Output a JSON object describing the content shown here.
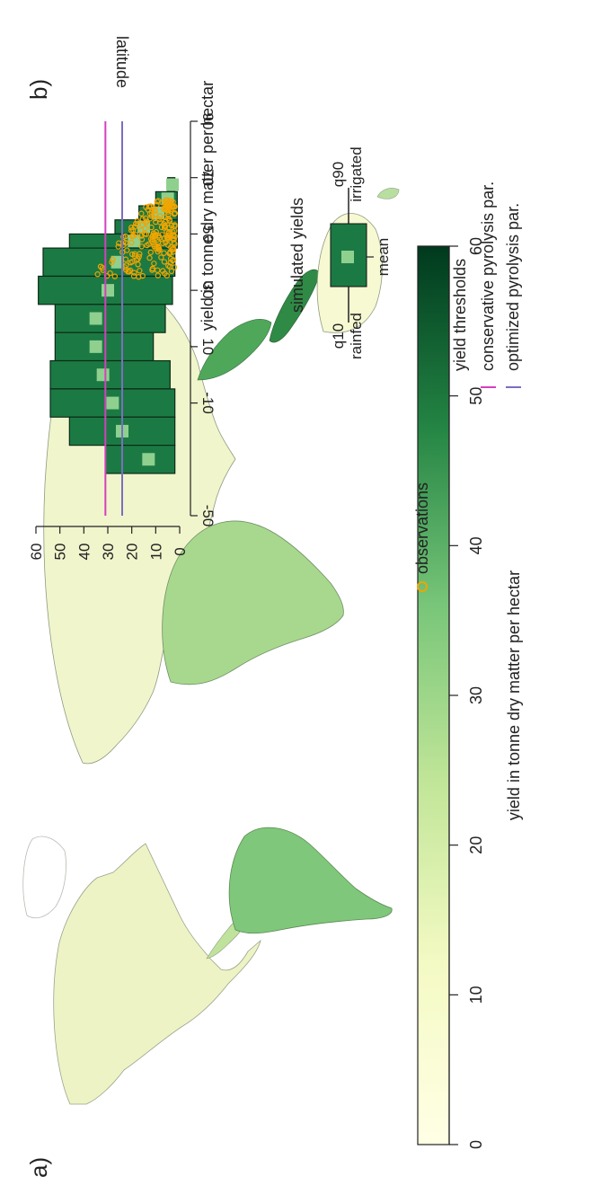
{
  "panel_a": {
    "label": "a)",
    "legend": {
      "title": "yield in tonne dry matter per hectar",
      "ticks": [
        "0",
        "10",
        "20",
        "30",
        "40",
        "50",
        "60"
      ],
      "range": [
        0,
        60
      ],
      "colors": [
        "#ffffe5",
        "#d9f0a3",
        "#78c679",
        "#238443",
        "#004529"
      ]
    }
  },
  "panel_b": {
    "label": "b)",
    "chart_data": {
      "type": "bar",
      "orientation": "horizontal-boxes-by-latitude",
      "xlabel": "yield in tonne dry matter per hectar",
      "ylabel": "latitude",
      "xlim": [
        0,
        60
      ],
      "ylim": [
        -50,
        90
      ],
      "x_ticks": [
        "0",
        "10",
        "20",
        "30",
        "40",
        "50",
        "60"
      ],
      "y_ticks": [
        "90",
        "70",
        "50",
        "30",
        "10",
        "-10",
        "-50"
      ],
      "y_tick_values": [
        90,
        70,
        50,
        30,
        10,
        -10,
        -50
      ],
      "box_color": "#1b7a43",
      "mean_color": "#8fd08f",
      "bins": [
        {
          "lat_top": 70,
          "lat_bottom": 65,
          "q10": 2,
          "q90": 5,
          "mean": 3
        },
        {
          "lat_top": 65,
          "lat_bottom": 60,
          "q10": 1,
          "q90": 10,
          "mean": 5
        },
        {
          "lat_top": 60,
          "lat_bottom": 55,
          "q10": 1,
          "q90": 17,
          "mean": 9
        },
        {
          "lat_top": 55,
          "lat_bottom": 50,
          "q10": 1,
          "q90": 27,
          "mean": 15
        },
        {
          "lat_top": 50,
          "lat_bottom": 45,
          "q10": 1,
          "q90": 46,
          "mean": 19
        },
        {
          "lat_top": 45,
          "lat_bottom": 35,
          "q10": 2,
          "q90": 57,
          "mean": 26
        },
        {
          "lat_top": 35,
          "lat_bottom": 25,
          "q10": 3,
          "q90": 59,
          "mean": 30
        },
        {
          "lat_top": 25,
          "lat_bottom": 15,
          "q10": 6,
          "q90": 52,
          "mean": 35
        },
        {
          "lat_top": 15,
          "lat_bottom": 5,
          "q10": 11,
          "q90": 52,
          "mean": 35
        },
        {
          "lat_top": 5,
          "lat_bottom": -5,
          "q10": 4,
          "q90": 54,
          "mean": 32
        },
        {
          "lat_top": -5,
          "lat_bottom": -15,
          "q10": 2,
          "q90": 54,
          "mean": 28
        },
        {
          "lat_top": -15,
          "lat_bottom": -25,
          "q10": 2,
          "q90": 46,
          "mean": 24
        },
        {
          "lat_top": -25,
          "lat_bottom": -35,
          "q10": 2,
          "q90": 31,
          "mean": 13
        }
      ],
      "thresholds": [
        {
          "name": "conservative pyrolysis par.",
          "value": 31,
          "color": "#d63fbf"
        },
        {
          "name": "optimized pyrolysis par.",
          "value": 24,
          "color": "#7a6fc0"
        }
      ],
      "observation_color": "#f0a500"
    },
    "legend": {
      "simulated_title": "simulated yields",
      "q10": "q10",
      "q90": "q90",
      "rainfed": "rainfed",
      "irrigated": "irrigated",
      "mean": "mean",
      "observations": "observations",
      "thresholds_title": "yield thresholds",
      "conservative": "conservative pyrolysis par.",
      "optimized": "optimized pyrolysis par."
    }
  }
}
